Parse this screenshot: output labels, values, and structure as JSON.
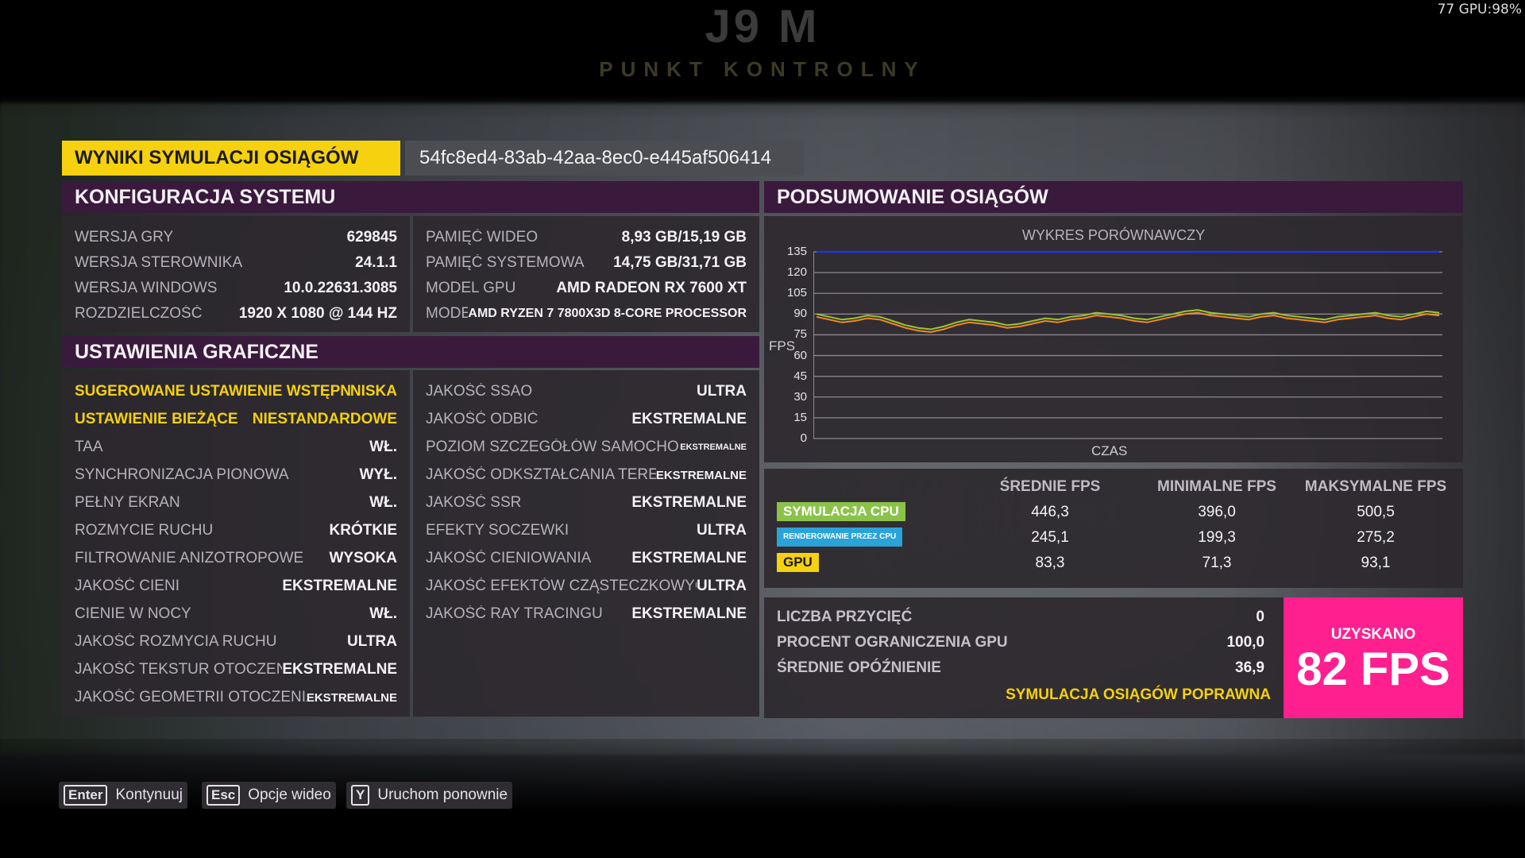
{
  "background": {
    "title_big": "J9 M",
    "title_sub": "PUNKT KONTROLNY",
    "overlay": "77 GPU:98%"
  },
  "header": {
    "title": "WYNIKI SYMULACJI OSIĄGÓW",
    "run_id": "54fc8ed4-83ab-42aa-8ec0-e445af506414"
  },
  "system": {
    "heading": "KONFIGURACJA SYSTEMU",
    "left": [
      {
        "k": "WERSJA GRY",
        "v": "629845"
      },
      {
        "k": "WERSJA STEROWNIKA",
        "v": "24.1.1"
      },
      {
        "k": "WERSJA WINDOWS",
        "v": "10.0.22631.3085"
      },
      {
        "k": "ROZDZIELCZOŚĆ",
        "v": "1920 x 1080 @ 144 Hz"
      }
    ],
    "right": [
      {
        "k": "PAMIĘĆ WIDEO",
        "v": "8,93 GB/15,19 GB"
      },
      {
        "k": "PAMIĘĆ SYSTEMOWA",
        "v": "14,75 GB/31,71 GB"
      },
      {
        "k": "MODEL GPU",
        "v": "AMD Radeon RX 7600 XT"
      },
      {
        "k": "MODEL CPU",
        "v": "AMD Ryzen 7 7800X3D 8-Core Processor"
      }
    ]
  },
  "graphics": {
    "heading": "USTAWIENIA GRAFICZNE",
    "left": [
      {
        "k": "SUGEROWANE USTAWIENIE WSTĘPNE",
        "v": "NISKA"
      },
      {
        "k": "USTAWIENIE BIEŻĄCE",
        "v": "NIESTANDARDOWE"
      },
      {
        "k": "TAA",
        "v": "WŁ."
      },
      {
        "k": "SYNCHRONIZACJA PIONOWA",
        "v": "WYŁ."
      },
      {
        "k": "PEŁNY EKRAN",
        "v": "WŁ."
      },
      {
        "k": "ROZMYCIE RUCHU",
        "v": "KRÓTKIE"
      },
      {
        "k": "FILTROWANIE ANIZOTROPOWE",
        "v": "WYSOKA"
      },
      {
        "k": "JAKOŚĆ CIENI",
        "v": "EKSTREMALNE"
      },
      {
        "k": "CIENIE W NOCY",
        "v": "WŁ."
      },
      {
        "k": "JAKOŚĆ ROZMYCIA RUCHU",
        "v": "ULTRA"
      },
      {
        "k": "JAKOŚĆ TEKSTUR OTOCZENIA",
        "v": "EKSTREMALNE"
      },
      {
        "k": "JAKOŚĆ GEOMETRII OTOCZENIA",
        "v": "EKSTREMALNE"
      }
    ],
    "right": [
      {
        "k": "JAKOŚĆ SSAO",
        "v": "ULTRA"
      },
      {
        "k": "JAKOŚĆ ODBIĆ",
        "v": "EKSTREMALNE"
      },
      {
        "k": "POZIOM SZCZEGÓŁÓW SAMOCHODÓW",
        "v": "EKSTREMALNE"
      },
      {
        "k": "JAKOŚĆ ODKSZTAŁCANIA TERENU",
        "v": "EKSTREMALNE"
      },
      {
        "k": "JAKOŚĆ SSR",
        "v": "EKSTREMALNE"
      },
      {
        "k": "EFEKTY SOCZEWKI",
        "v": "ULTRA"
      },
      {
        "k": "JAKOŚĆ CIENIOWANIA",
        "v": "EKSTREMALNE"
      },
      {
        "k": "JAKOŚĆ EFEKTÓW CZĄSTECZKOWYCH",
        "v": "ULTRA"
      },
      {
        "k": "JAKOŚĆ RAY TRACINGU",
        "v": "EKSTREMALNE"
      }
    ]
  },
  "summary": {
    "heading": "PODSUMOWANIE OSIĄGÓW",
    "col_avg": "ŚREDNIE FPS",
    "col_min": "MINIMALNE FPS",
    "col_max": "MAKSYMALNE FPS",
    "rows": [
      {
        "label": "SYMULACJA CPU",
        "avg": "446,3",
        "min": "396,0",
        "max": "500,5",
        "color": "#8bc34a"
      },
      {
        "label": "RENDEROWANIE PRZEZ CPU",
        "avg": "245,1",
        "min": "199,3",
        "max": "275,2",
        "color": "#29a3d8"
      },
      {
        "label": "GPU",
        "avg": "83,3",
        "min": "71,3",
        "max": "93,1",
        "color": "#f5d10f"
      }
    ],
    "results": [
      {
        "k": "LICZBA PRZYCIĘĆ",
        "v": "0"
      },
      {
        "k": "PROCENT OGRANICZENIA GPU",
        "v": "100,0"
      },
      {
        "k": "ŚREDNIE OPÓŹNIENIE",
        "v": "36,9"
      }
    ],
    "valid_text": "SYMULACJA OSIĄGÓW POPRAWNA",
    "fps_label": "UZYSKANO",
    "fps_value": "82 FPS"
  },
  "chart_data": {
    "type": "line",
    "title": "WYKRES PORÓWNAWCZY",
    "xlabel": "CZAS",
    "ylabel": "FPS",
    "ylim": [
      0,
      135
    ],
    "yticks": [
      0,
      15,
      30,
      45,
      60,
      75,
      90,
      105,
      120,
      135
    ],
    "grid": true,
    "series": [
      {
        "color": "#f08a24",
        "values": [
          88,
          86,
          84,
          85,
          87,
          86,
          83,
          80,
          78,
          77,
          79,
          82,
          84,
          83,
          82,
          80,
          81,
          83,
          85,
          84,
          86,
          87,
          89,
          88,
          87,
          85,
          84,
          86,
          88,
          90,
          91,
          89,
          88,
          87,
          86,
          88,
          89,
          87,
          86,
          85,
          84,
          86,
          87,
          88,
          89,
          87,
          86,
          88,
          90,
          89
        ]
      },
      {
        "color": "#9cc62a",
        "values": [
          90,
          88,
          86,
          87,
          89,
          88,
          85,
          82,
          80,
          79,
          81,
          84,
          86,
          85,
          84,
          82,
          83,
          85,
          87,
          86,
          88,
          89,
          91,
          90,
          89,
          87,
          86,
          88,
          90,
          92,
          93,
          91,
          90,
          89,
          88,
          90,
          91,
          89,
          88,
          87,
          86,
          88,
          89,
          90,
          91,
          89,
          88,
          90,
          92,
          91
        ]
      },
      {
        "color": "#2233dd",
        "values": [
          135,
          135,
          135,
          135,
          135,
          135,
          135,
          135,
          135,
          135
        ]
      }
    ]
  },
  "footer": {
    "buttons": [
      {
        "key": "Enter",
        "label": "Kontynuuj"
      },
      {
        "key": "Esc",
        "label": "Opcje wideo"
      },
      {
        "key": "Y",
        "label": "Uruchom ponownie"
      }
    ]
  }
}
